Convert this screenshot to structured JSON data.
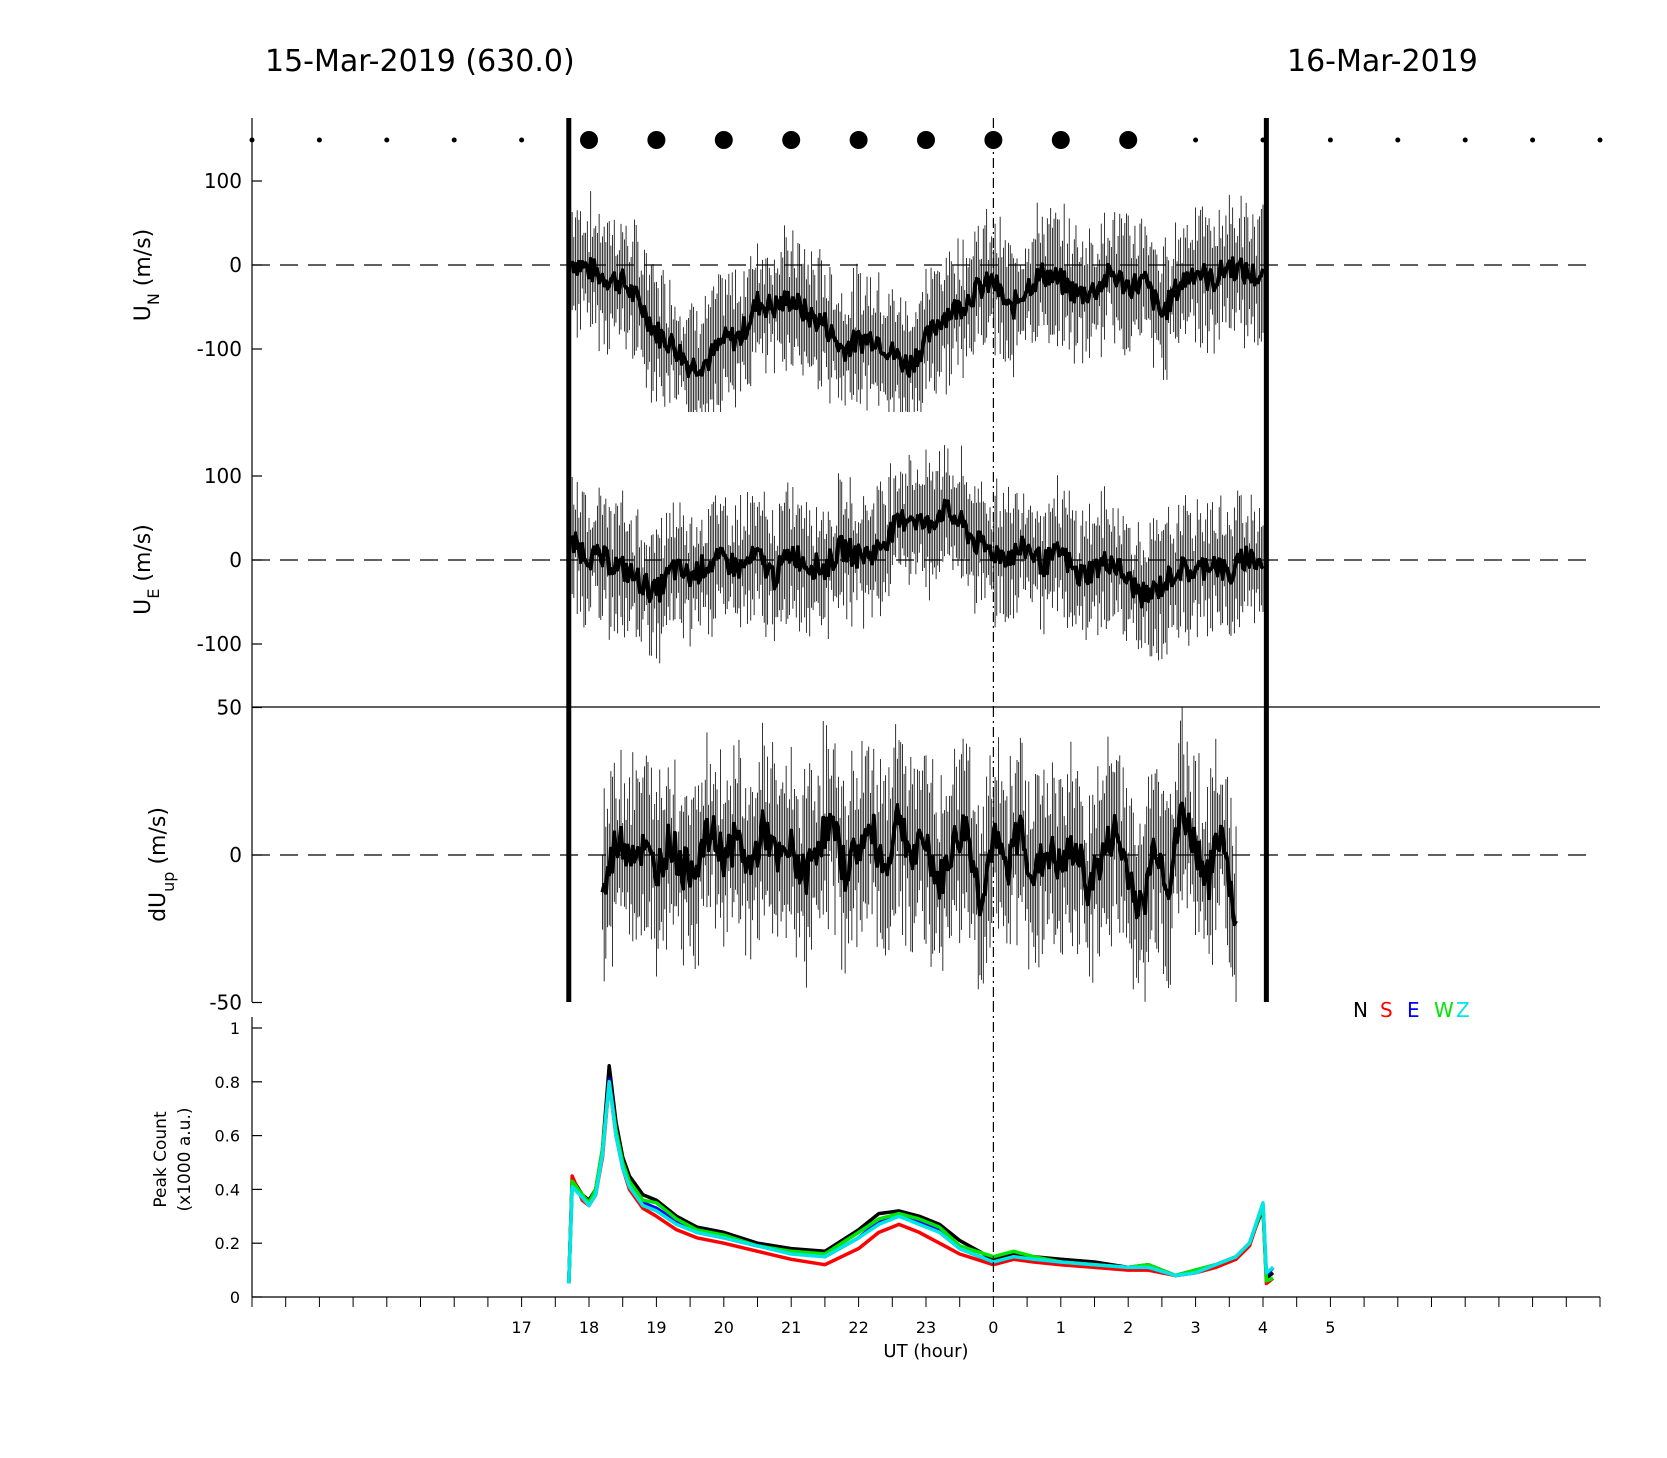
{
  "header": {
    "left": "15-Mar-2019 (630.0)",
    "right": "16-Mar-2019"
  },
  "chart_data": [
    {
      "type": "line",
      "panel": "U_N",
      "ylabel_main": "U",
      "ylabel_sub": "N",
      "ylabel_unit": " (m/s)",
      "yticks": [
        100,
        0,
        -100
      ],
      "ylim": [
        -175,
        175
      ],
      "xlim": [
        13,
        33
      ],
      "zero_line": "dashed",
      "x": [
        17.75,
        18.0,
        18.25,
        18.5,
        18.75,
        19.0,
        19.25,
        19.5,
        19.75,
        20.0,
        20.25,
        20.5,
        20.75,
        21.0,
        21.25,
        21.5,
        21.75,
        22.0,
        22.25,
        22.5,
        22.75,
        23.0,
        23.25,
        23.5,
        23.75,
        24.0,
        24.25,
        24.5,
        24.75,
        25.0,
        25.25,
        25.5,
        25.75,
        26.0,
        26.25,
        26.5,
        26.75,
        27.0,
        27.25,
        27.5,
        27.75,
        28.0
      ],
      "values": [
        5,
        -5,
        -15,
        -20,
        -45,
        -80,
        -95,
        -120,
        -115,
        -90,
        -85,
        -45,
        -50,
        -40,
        -60,
        -70,
        -100,
        -90,
        -85,
        -105,
        -120,
        -90,
        -60,
        -50,
        -30,
        -20,
        -55,
        -25,
        -10,
        -20,
        -35,
        -30,
        -10,
        -25,
        -20,
        -60,
        -25,
        -5,
        -20,
        0,
        -10,
        -15
      ]
    },
    {
      "type": "line",
      "panel": "U_E",
      "ylabel_main": "U",
      "ylabel_sub": "E",
      "ylabel_unit": " (m/s)",
      "yticks": [
        100,
        0,
        -100
      ],
      "ylim": [
        -175,
        175
      ],
      "xlim": [
        13,
        33
      ],
      "zero_line": "dashed",
      "x": [
        17.75,
        18.0,
        18.25,
        18.5,
        18.75,
        19.0,
        19.25,
        19.5,
        19.75,
        20.0,
        20.25,
        20.5,
        20.75,
        21.0,
        21.25,
        21.5,
        21.75,
        22.0,
        22.25,
        22.5,
        22.75,
        23.0,
        23.25,
        23.5,
        23.75,
        24.0,
        24.25,
        24.5,
        24.75,
        25.0,
        25.25,
        25.5,
        25.75,
        26.0,
        26.25,
        26.5,
        26.75,
        27.0,
        27.25,
        27.5,
        27.75,
        28.0
      ],
      "values": [
        20,
        5,
        0,
        -10,
        -25,
        -40,
        -10,
        -20,
        -5,
        0,
        -10,
        5,
        -20,
        10,
        -5,
        -10,
        15,
        5,
        10,
        35,
        55,
        40,
        60,
        45,
        20,
        10,
        5,
        15,
        -5,
        10,
        -20,
        -10,
        0,
        -25,
        -45,
        -30,
        -10,
        -15,
        0,
        -20,
        5,
        -5
      ]
    },
    {
      "type": "line",
      "panel": "dU_up",
      "ylabel_main": "dU",
      "ylabel_sub": "up",
      "ylabel_unit": " (m/s)",
      "yticks": [
        50,
        0,
        -50
      ],
      "ylim": [
        -50,
        50
      ],
      "xlim": [
        13,
        33
      ],
      "zero_line": "dashed",
      "x": [
        18.2,
        18.4,
        18.6,
        18.8,
        19.0,
        19.2,
        19.4,
        19.6,
        19.8,
        20.0,
        20.2,
        20.4,
        20.6,
        20.8,
        21.0,
        21.2,
        21.4,
        21.6,
        21.8,
        22.0,
        22.2,
        22.4,
        22.6,
        22.8,
        23.0,
        23.2,
        23.4,
        23.6,
        23.8,
        24.0,
        24.2,
        24.4,
        24.6,
        24.8,
        25.0,
        25.2,
        25.4,
        25.6,
        25.8,
        26.0,
        26.2,
        26.4,
        26.6,
        26.8,
        27.0,
        27.2,
        27.4,
        27.6
      ],
      "values": [
        -15,
        5,
        3,
        2,
        -5,
        5,
        -5,
        -2,
        8,
        0,
        5,
        -5,
        10,
        -3,
        2,
        -8,
        5,
        10,
        -5,
        3,
        8,
        -5,
        15,
        -2,
        5,
        -10,
        3,
        10,
        -15,
        5,
        -5,
        10,
        -8,
        2,
        -5,
        3,
        -10,
        -2,
        8,
        -5,
        -20,
        5,
        -10,
        15,
        3,
        -8,
        10,
        -25
      ]
    },
    {
      "type": "line",
      "panel": "peak_count",
      "ylabel_line1": "Peak Count",
      "ylabel_line2": "(x1000 a.u.)",
      "yticks": [
        1,
        0.8,
        0.6,
        0.4,
        0.2,
        0
      ],
      "ylim": [
        0,
        1
      ],
      "xlim": [
        13,
        33
      ],
      "xlabel": "UT (hour)",
      "xticklabels": [
        "17",
        "18",
        "19",
        "20",
        "21",
        "22",
        "23",
        "0",
        "1",
        "2",
        "3",
        "4",
        "5"
      ],
      "xtickpos": [
        17,
        18,
        19,
        20,
        21,
        22,
        23,
        24,
        25,
        26,
        27,
        28,
        29
      ],
      "legend": "top-right",
      "x": [
        17.7,
        17.75,
        17.9,
        18.0,
        18.1,
        18.2,
        18.3,
        18.4,
        18.5,
        18.6,
        18.8,
        19.0,
        19.3,
        19.6,
        20.0,
        20.5,
        21.0,
        21.5,
        22.0,
        22.3,
        22.6,
        22.9,
        23.2,
        23.5,
        24.0,
        24.3,
        24.6,
        25.0,
        25.5,
        26.0,
        26.3,
        26.7,
        27.0,
        27.3,
        27.6,
        27.8,
        28.0,
        28.05,
        28.15
      ],
      "series": [
        {
          "name": "N",
          "color": "#000000",
          "values": [
            0.05,
            0.44,
            0.38,
            0.36,
            0.4,
            0.55,
            0.86,
            0.65,
            0.52,
            0.45,
            0.38,
            0.36,
            0.3,
            0.26,
            0.24,
            0.2,
            0.18,
            0.17,
            0.25,
            0.31,
            0.32,
            0.3,
            0.27,
            0.21,
            0.14,
            0.16,
            0.15,
            0.14,
            0.13,
            0.11,
            0.12,
            0.08,
            0.1,
            0.12,
            0.15,
            0.2,
            0.33,
            0.07,
            0.09
          ]
        },
        {
          "name": "S",
          "color": "#ff0000",
          "values": [
            0.05,
            0.45,
            0.36,
            0.34,
            0.38,
            0.52,
            0.8,
            0.6,
            0.48,
            0.4,
            0.33,
            0.3,
            0.25,
            0.22,
            0.2,
            0.17,
            0.14,
            0.12,
            0.18,
            0.24,
            0.27,
            0.24,
            0.2,
            0.16,
            0.12,
            0.14,
            0.13,
            0.12,
            0.11,
            0.1,
            0.1,
            0.08,
            0.09,
            0.11,
            0.14,
            0.19,
            0.34,
            0.05,
            0.07
          ]
        },
        {
          "name": "E",
          "color": "#0000ff",
          "values": [
            0.05,
            0.42,
            0.37,
            0.35,
            0.39,
            0.54,
            0.81,
            0.62,
            0.49,
            0.42,
            0.35,
            0.33,
            0.28,
            0.24,
            0.22,
            0.19,
            0.17,
            0.15,
            0.22,
            0.28,
            0.3,
            0.28,
            0.25,
            0.18,
            0.13,
            0.15,
            0.14,
            0.13,
            0.12,
            0.11,
            0.11,
            0.08,
            0.09,
            0.12,
            0.15,
            0.2,
            0.34,
            0.08,
            0.11
          ]
        },
        {
          "name": "W",
          "color": "#00e600",
          "values": [
            0.05,
            0.43,
            0.38,
            0.35,
            0.4,
            0.55,
            0.8,
            0.62,
            0.5,
            0.43,
            0.36,
            0.35,
            0.29,
            0.25,
            0.23,
            0.19,
            0.17,
            0.16,
            0.24,
            0.29,
            0.31,
            0.29,
            0.26,
            0.19,
            0.15,
            0.17,
            0.15,
            0.13,
            0.12,
            0.11,
            0.12,
            0.08,
            0.1,
            0.12,
            0.15,
            0.2,
            0.34,
            0.06,
            0.07
          ]
        },
        {
          "name": "Z",
          "color": "#00e6e6",
          "values": [
            0.05,
            0.41,
            0.37,
            0.34,
            0.38,
            0.53,
            0.8,
            0.6,
            0.48,
            0.41,
            0.34,
            0.32,
            0.27,
            0.24,
            0.22,
            0.19,
            0.16,
            0.15,
            0.22,
            0.27,
            0.3,
            0.27,
            0.24,
            0.18,
            0.13,
            0.15,
            0.14,
            0.13,
            0.12,
            0.11,
            0.11,
            0.08,
            0.09,
            0.12,
            0.15,
            0.2,
            0.35,
            0.09,
            0.11
          ]
        }
      ]
    }
  ],
  "colors": {
    "axis": "#000000",
    "trace": "#000000"
  }
}
